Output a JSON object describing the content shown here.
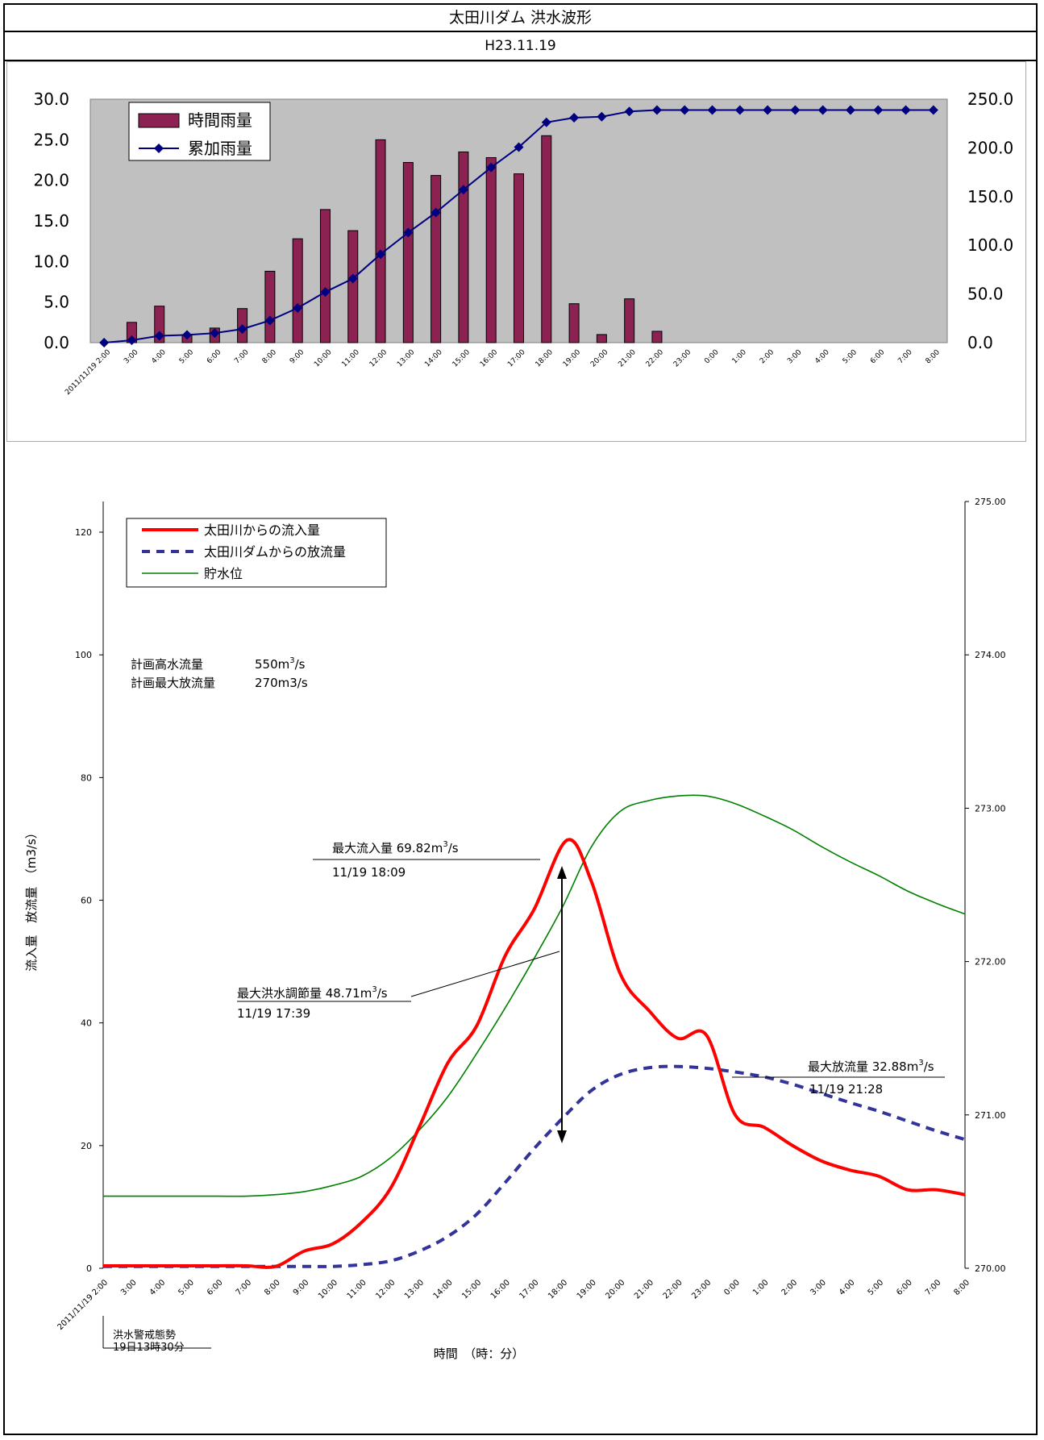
{
  "header": {
    "title": "太田川ダム 洪水波形",
    "date": "H23.11.19"
  },
  "x_tick_labels": [
    "2011/11/19 2:00",
    "3:00",
    "4:00",
    "5:00",
    "6:00",
    "7:00",
    "8:00",
    "9:00",
    "10:00",
    "11:00",
    "12:00",
    "13:00",
    "14:00",
    "15:00",
    "16:00",
    "17:00",
    "18:00",
    "19:00",
    "20:00",
    "21:00",
    "22:00",
    "23:00",
    "0:00",
    "1:00",
    "2:00",
    "3:00",
    "4:00",
    "5:00",
    "6:00",
    "7:00",
    "8:00"
  ],
  "colors": {
    "bar_fill": "#8B2252",
    "cumulative_line": "#000080",
    "inflow": "#FF0000",
    "outflow": "#333399",
    "water_level": "#008000",
    "plot_bg": "#C0C0C0"
  },
  "chart_data": [
    {
      "type": "bar",
      "categories": [
        "2011/11/19 2:00",
        "3:00",
        "4:00",
        "5:00",
        "6:00",
        "7:00",
        "8:00",
        "9:00",
        "10:00",
        "11:00",
        "12:00",
        "13:00",
        "14:00",
        "15:00",
        "16:00",
        "17:00",
        "18:00",
        "19:00",
        "20:00",
        "21:00",
        "22:00",
        "23:00",
        "0:00",
        "1:00",
        "2:00",
        "3:00",
        "4:00",
        "5:00",
        "6:00",
        "7:00",
        "8:00"
      ],
      "series": [
        {
          "name": "時間雨量",
          "axis": "left",
          "kind": "bar",
          "values": [
            0,
            2.5,
            4.5,
            1.0,
            1.8,
            4.2,
            8.8,
            12.8,
            16.4,
            13.8,
            25.0,
            22.2,
            20.6,
            23.5,
            22.8,
            20.8,
            25.5,
            4.8,
            1.0,
            5.4,
            1.4,
            0,
            0,
            0,
            0,
            0,
            0,
            0,
            0,
            0,
            0
          ]
        },
        {
          "name": "累加雨量",
          "axis": "right",
          "kind": "line",
          "values": [
            0,
            2.5,
            7.0,
            8.0,
            9.8,
            14.0,
            22.8,
            35.6,
            52.0,
            65.8,
            90.8,
            113.0,
            133.6,
            157.1,
            179.9,
            200.7,
            226.2,
            231.0,
            232.0,
            237.4,
            238.8,
            238.8,
            238.8,
            238.8,
            238.8,
            238.8,
            238.8,
            238.8,
            238.8,
            238.8,
            238.8
          ]
        }
      ],
      "ylim_left": [
        0,
        30
      ],
      "ylim_right": [
        0,
        250
      ],
      "yticks_left": [
        "0.0",
        "5.0",
        "10.0",
        "15.0",
        "20.0",
        "25.0",
        "30.0"
      ],
      "yticks_right": [
        "0.0",
        "50.0",
        "100.0",
        "150.0",
        "200.0",
        "250.0"
      ],
      "legend": "top-left",
      "grid": false
    },
    {
      "type": "line",
      "x": [
        "2011/11/19 2:00",
        "3:00",
        "4:00",
        "5:00",
        "6:00",
        "7:00",
        "8:00",
        "9:00",
        "10:00",
        "11:00",
        "12:00",
        "13:00",
        "14:00",
        "15:00",
        "16:00",
        "17:00",
        "18:00",
        "19:00",
        "20:00",
        "21:00",
        "22:00",
        "23:00",
        "0:00",
        "1:00",
        "2:00",
        "3:00",
        "4:00",
        "5:00",
        "6:00",
        "7:00",
        "8:00"
      ],
      "series": [
        {
          "name": "太田川からの流入量",
          "axis": "left",
          "points": [
            [
              0,
              0.4
            ],
            [
              1,
              0.4
            ],
            [
              2,
              0.4
            ],
            [
              3,
              0.4
            ],
            [
              4,
              0.4
            ],
            [
              5,
              0.4
            ],
            [
              6,
              0.3
            ],
            [
              7,
              2.8
            ],
            [
              8,
              4.0
            ],
            [
              9,
              7.5
            ],
            [
              10,
              13.0
            ],
            [
              11,
              23.0
            ],
            [
              12,
              33.5
            ],
            [
              13,
              39.5
            ],
            [
              14,
              51.0
            ],
            [
              15,
              58.5
            ],
            [
              16.15,
              69.8
            ],
            [
              17,
              63.0
            ],
            [
              18,
              48.0
            ],
            [
              19,
              42.0
            ],
            [
              20,
              37.5
            ],
            [
              21,
              38.0
            ],
            [
              22,
              25.0
            ],
            [
              23,
              23.0
            ],
            [
              24,
              20.0
            ],
            [
              25,
              17.5
            ],
            [
              26,
              16.0
            ],
            [
              27,
              15.0
            ],
            [
              28,
              12.8
            ],
            [
              29,
              12.8
            ],
            [
              30,
              12.0
            ]
          ]
        },
        {
          "name": "太田川ダムからの放流量",
          "axis": "left",
          "points": [
            [
              0,
              0.3
            ],
            [
              1,
              0.3
            ],
            [
              2,
              0.3
            ],
            [
              3,
              0.3
            ],
            [
              4,
              0.3
            ],
            [
              5,
              0.3
            ],
            [
              6,
              0.3
            ],
            [
              7,
              0.3
            ],
            [
              8,
              0.3
            ],
            [
              9,
              0.6
            ],
            [
              10,
              1.2
            ],
            [
              11,
              2.8
            ],
            [
              12,
              5.2
            ],
            [
              13,
              8.8
            ],
            [
              14,
              14.0
            ],
            [
              15,
              19.5
            ],
            [
              16,
              24.5
            ],
            [
              17,
              29.0
            ],
            [
              18,
              31.6
            ],
            [
              19,
              32.7
            ],
            [
              20,
              32.9
            ],
            [
              21,
              32.6
            ],
            [
              22,
              32.0
            ],
            [
              23,
              31.2
            ],
            [
              24,
              30.0
            ],
            [
              25,
              28.5
            ],
            [
              26,
              27.0
            ],
            [
              27,
              25.6
            ],
            [
              28,
              24.0
            ],
            [
              29,
              22.4
            ],
            [
              30,
              21.0
            ]
          ]
        },
        {
          "name": "貯水位",
          "axis": "right",
          "points": [
            [
              0,
              270.47
            ],
            [
              1,
              270.47
            ],
            [
              2,
              270.47
            ],
            [
              3,
              270.47
            ],
            [
              4,
              270.47
            ],
            [
              5,
              270.47
            ],
            [
              6,
              270.48
            ],
            [
              7,
              270.5
            ],
            [
              8,
              270.54
            ],
            [
              9,
              270.6
            ],
            [
              10,
              270.72
            ],
            [
              11,
              270.9
            ],
            [
              12,
              271.12
            ],
            [
              13,
              271.4
            ],
            [
              14,
              271.7
            ],
            [
              15,
              272.02
            ],
            [
              16,
              272.36
            ],
            [
              17,
              272.75
            ],
            [
              18,
              272.98
            ],
            [
              19,
              273.05
            ],
            [
              20,
              273.08
            ],
            [
              21,
              273.08
            ],
            [
              22,
              273.03
            ],
            [
              23,
              272.95
            ],
            [
              24,
              272.86
            ],
            [
              25,
              272.75
            ],
            [
              26,
              272.65
            ],
            [
              27,
              272.56
            ],
            [
              28,
              272.46
            ],
            [
              29,
              272.38
            ],
            [
              30,
              272.31
            ]
          ]
        }
      ],
      "ylim_left": [
        0,
        125
      ],
      "ylim_right": [
        270,
        275
      ],
      "yticks_left": [
        "0",
        "20",
        "40",
        "60",
        "80",
        "100",
        "120"
      ],
      "yticks_right": [
        "270.00",
        "271.00",
        "272.00",
        "273.00",
        "274.00",
        "275.00"
      ],
      "ylabel": "流入量　放流量　（m3/s）",
      "xlabel": "時間　（時：分）",
      "legend": "top-left",
      "grid": false
    }
  ],
  "annotations": {
    "plan_high_label": "計画高水流量",
    "plan_high_value": "550m",
    "plan_high_unit": "/s",
    "plan_max_label": "計画最大放流量",
    "plan_max_value": "270m3/s",
    "max_inflow_label": "最大流入量  69.82m",
    "max_inflow_time": "11/19  18:09",
    "max_adjust_label": "最大洪水調節量  48.71m",
    "max_adjust_time": "11/19  17:39",
    "max_outflow_label": "最大放流量  32.88m",
    "max_outflow_time": "11/19  21:28",
    "unit_tail": "/s",
    "superscript": "3",
    "flood_alert_label": "洪水警戒態勢",
    "flood_alert_time": "19日13時30分"
  }
}
